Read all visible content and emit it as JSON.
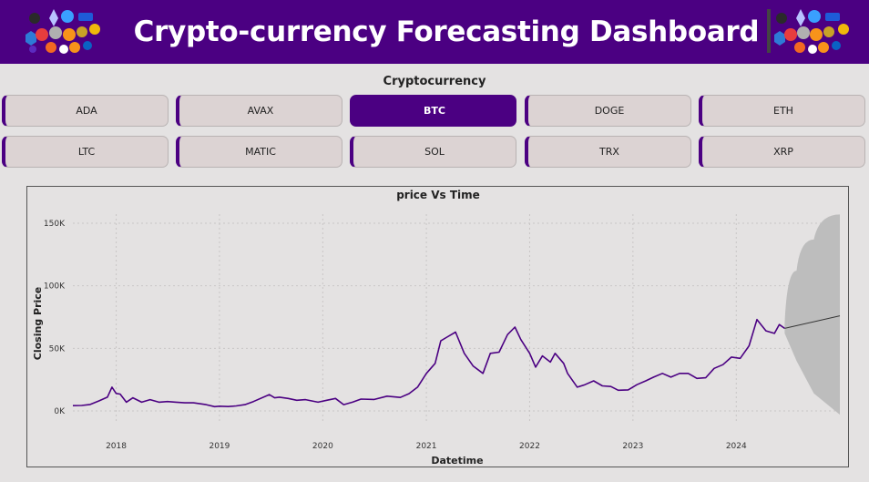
{
  "header": {
    "title": "Crypto-currency Forecasting Dashboard",
    "logo_icons": [
      "coin-cluster-icon"
    ],
    "background": "#4b0082"
  },
  "slicer": {
    "label": "Cryptocurrency",
    "options": [
      "ADA",
      "AVAX",
      "BTC",
      "DOGE",
      "ETH",
      "LTC",
      "MATIC",
      "SOL",
      "TRX",
      "XRP"
    ],
    "selected": "BTC"
  },
  "chart_data": {
    "type": "line",
    "title": "price Vs Time",
    "xlabel": "Datetime",
    "ylabel": "Closing Price",
    "x_ticks": [
      "2018",
      "2019",
      "2020",
      "2021",
      "2022",
      "2023",
      "2024"
    ],
    "y_ticks": [
      "0K",
      "50K",
      "100K",
      "150K"
    ],
    "ylim": [
      0,
      150000
    ],
    "xlim": [
      "2017-08",
      "2025-01"
    ],
    "grid": true,
    "line_color": "#4b0082",
    "series": [
      {
        "values": [
          [
            "2017-08-01",
            4200
          ],
          [
            "2017-09-01",
            4400
          ],
          [
            "2017-10-01",
            5200
          ],
          [
            "2017-11-01",
            8000
          ],
          [
            "2017-12-01",
            11000
          ],
          [
            "2017-12-17",
            19000
          ],
          [
            "2018-01-01",
            14000
          ],
          [
            "2018-01-15",
            13500
          ],
          [
            "2018-02-06",
            7000
          ],
          [
            "2018-03-01",
            10500
          ],
          [
            "2018-04-01",
            7000
          ],
          [
            "2018-05-01",
            9000
          ],
          [
            "2018-06-01",
            7000
          ],
          [
            "2018-07-01",
            7500
          ],
          [
            "2018-08-01",
            7000
          ],
          [
            "2018-09-01",
            6500
          ],
          [
            "2018-10-01",
            6500
          ],
          [
            "2018-11-15",
            5000
          ],
          [
            "2018-12-15",
            3400
          ],
          [
            "2019-01-01",
            3800
          ],
          [
            "2019-02-01",
            3500
          ],
          [
            "2019-03-01",
            4000
          ],
          [
            "2019-04-01",
            5000
          ],
          [
            "2019-05-01",
            7500
          ],
          [
            "2019-06-26",
            13000
          ],
          [
            "2019-07-15",
            10500
          ],
          [
            "2019-08-01",
            11000
          ],
          [
            "2019-09-01",
            10000
          ],
          [
            "2019-10-01",
            8500
          ],
          [
            "2019-11-01",
            9000
          ],
          [
            "2019-12-15",
            7000
          ],
          [
            "2020-01-15",
            8500
          ],
          [
            "2020-02-15",
            10000
          ],
          [
            "2020-03-15",
            5000
          ],
          [
            "2020-04-15",
            7000
          ],
          [
            "2020-05-15",
            9500
          ],
          [
            "2020-07-01",
            9200
          ],
          [
            "2020-08-15",
            11800
          ],
          [
            "2020-10-01",
            10800
          ],
          [
            "2020-11-01",
            13800
          ],
          [
            "2020-12-01",
            19000
          ],
          [
            "2021-01-01",
            30000
          ],
          [
            "2021-02-01",
            38000
          ],
          [
            "2021-02-21",
            56000
          ],
          [
            "2021-03-15",
            59000
          ],
          [
            "2021-04-14",
            63000
          ],
          [
            "2021-05-15",
            46000
          ],
          [
            "2021-06-15",
            36000
          ],
          [
            "2021-07-20",
            30000
          ],
          [
            "2021-08-15",
            46000
          ],
          [
            "2021-09-15",
            47000
          ],
          [
            "2021-10-15",
            61000
          ],
          [
            "2021-11-10",
            67000
          ],
          [
            "2021-12-01",
            57000
          ],
          [
            "2022-01-01",
            46000
          ],
          [
            "2022-01-22",
            35000
          ],
          [
            "2022-02-15",
            44000
          ],
          [
            "2022-03-15",
            39000
          ],
          [
            "2022-04-01",
            46000
          ],
          [
            "2022-05-01",
            38000
          ],
          [
            "2022-05-15",
            30000
          ],
          [
            "2022-06-18",
            19000
          ],
          [
            "2022-07-15",
            21000
          ],
          [
            "2022-08-15",
            24000
          ],
          [
            "2022-09-15",
            20000
          ],
          [
            "2022-10-15",
            19500
          ],
          [
            "2022-11-10",
            16500
          ],
          [
            "2022-12-15",
            16800
          ],
          [
            "2023-01-15",
            21000
          ],
          [
            "2023-02-15",
            24000
          ],
          [
            "2023-03-15",
            27000
          ],
          [
            "2023-04-15",
            30000
          ],
          [
            "2023-05-15",
            27000
          ],
          [
            "2023-06-15",
            30000
          ],
          [
            "2023-07-15",
            30000
          ],
          [
            "2023-08-15",
            26000
          ],
          [
            "2023-09-15",
            26500
          ],
          [
            "2023-10-15",
            34000
          ],
          [
            "2023-11-15",
            37000
          ],
          [
            "2023-12-15",
            43000
          ],
          [
            "2024-01-15",
            42000
          ],
          [
            "2024-02-15",
            52000
          ],
          [
            "2024-03-14",
            73000
          ],
          [
            "2024-04-15",
            64000
          ],
          [
            "2024-05-15",
            62000
          ],
          [
            "2024-06-01",
            69000
          ],
          [
            "2024-06-20",
            66000
          ]
        ]
      }
    ],
    "forecast": {
      "line": [
        [
          "2024-06-20",
          66000
        ],
        [
          "2025-01-01",
          76000
        ]
      ],
      "band_upper": [
        [
          "2024-06-20",
          70000
        ],
        [
          "2024-08-01",
          112000
        ],
        [
          "2024-10-01",
          137000
        ],
        [
          "2025-01-01",
          157000
        ]
      ],
      "band_lower": [
        [
          "2024-06-20",
          62000
        ],
        [
          "2024-08-01",
          40000
        ],
        [
          "2024-10-01",
          14000
        ],
        [
          "2025-01-01",
          -3000
        ]
      ],
      "band_color": "#bdbdbd"
    }
  }
}
